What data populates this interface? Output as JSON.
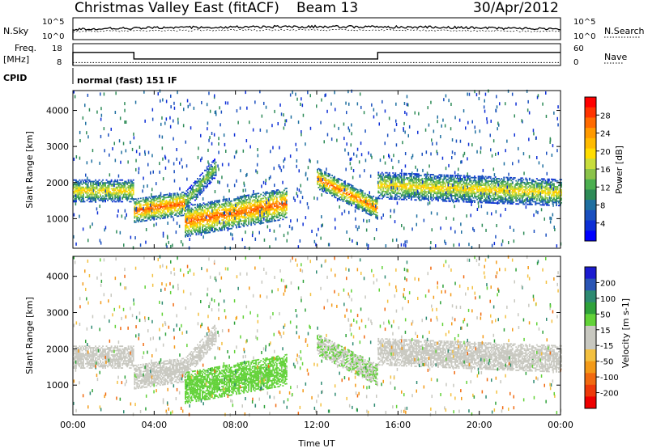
{
  "header": {
    "station": "Christmas Valley East (fitACF)",
    "beam": "Beam 13",
    "date": "30/Apr/2012"
  },
  "panels": {
    "noise": {
      "left_label": "N.Sky",
      "right_label": "N.Search",
      "left_ticks": [
        "10^5",
        "10^0"
      ],
      "right_ticks": [
        "10^5",
        "10^0"
      ]
    },
    "freq": {
      "left_label_line1": "Freq.",
      "left_label_line2": "[MHz]",
      "right_label": "Nave",
      "left_ticks": [
        "18",
        "8"
      ],
      "right_ticks": [
        "60",
        "0"
      ]
    },
    "cpid": {
      "label": "CPID",
      "mode_text": "normal (fast) 151 IF"
    }
  },
  "colorbars": {
    "power": {
      "label": "Power [dB]",
      "ticks": [
        "28",
        "24",
        "20",
        "16",
        "12",
        "8",
        "4"
      ],
      "colors": [
        "#ff0000",
        "#ff3300",
        "#ff6a00",
        "#ff9a00",
        "#ffbb00",
        "#ffdd00",
        "#c8dd3c",
        "#8bc34a",
        "#4caf50",
        "#2e8b57",
        "#1f6fa0",
        "#1a4fbf",
        "#0d2fd6",
        "#0000ff"
      ]
    },
    "velocity": {
      "label": "Velocity [m s-1]",
      "ticks": [
        "200",
        "100",
        "50",
        "15",
        "-15",
        "-50",
        "-100",
        "-200"
      ],
      "colors": [
        "#1b1bd0",
        "#2a55b5",
        "#2e8a72",
        "#2fa23a",
        "#62d238",
        "#c8c8c0",
        "#c8c8c0",
        "#f3c040",
        "#f39a18",
        "#f16a10",
        "#ee3a0a",
        "#ee0000"
      ]
    }
  },
  "chart_data": {
    "type": "heatmap",
    "xlabel": "Time UT",
    "ylabel": "Slant Range [km]",
    "x_ticks": [
      "00:00",
      "04:00",
      "08:00",
      "12:00",
      "16:00",
      "20:00",
      "00:00"
    ],
    "y_ticks": [
      "1000",
      "2000",
      "3000",
      "4000"
    ],
    "xlim_hours": [
      0,
      24
    ],
    "ylim_km": [
      180,
      4550
    ],
    "freq_mhz": [
      {
        "t": [
          0,
          3.0
        ],
        "value": 14
      },
      {
        "t": [
          3.0,
          15.0
        ],
        "value": 11
      },
      {
        "t": [
          15.0,
          24.0
        ],
        "value": 14
      }
    ],
    "nave_level": 8,
    "echo_bands": [
      {
        "t0": 0.0,
        "t1": 3.0,
        "r0": 1750,
        "r1": 1750,
        "width": 300,
        "power": 20,
        "velocity": 0
      },
      {
        "t0": 3.0,
        "t1": 5.5,
        "r0": 1200,
        "r1": 1400,
        "width": 320,
        "power": 26,
        "velocity": 0
      },
      {
        "t0": 5.5,
        "t1": 7.0,
        "r0": 1450,
        "r1": 2400,
        "width": 260,
        "power": 16,
        "velocity": -20
      },
      {
        "t0": 5.5,
        "t1": 10.5,
        "r0": 900,
        "r1": 1400,
        "width": 420,
        "power": 26,
        "velocity": 60
      },
      {
        "t0": 12.0,
        "t1": 15.0,
        "r0": 2100,
        "r1": 1250,
        "width": 280,
        "power": 25,
        "velocity": 40
      },
      {
        "t0": 15.0,
        "t1": 24.0,
        "r0": 1900,
        "r1": 1700,
        "width": 360,
        "power": 20,
        "velocity": 0
      }
    ]
  }
}
